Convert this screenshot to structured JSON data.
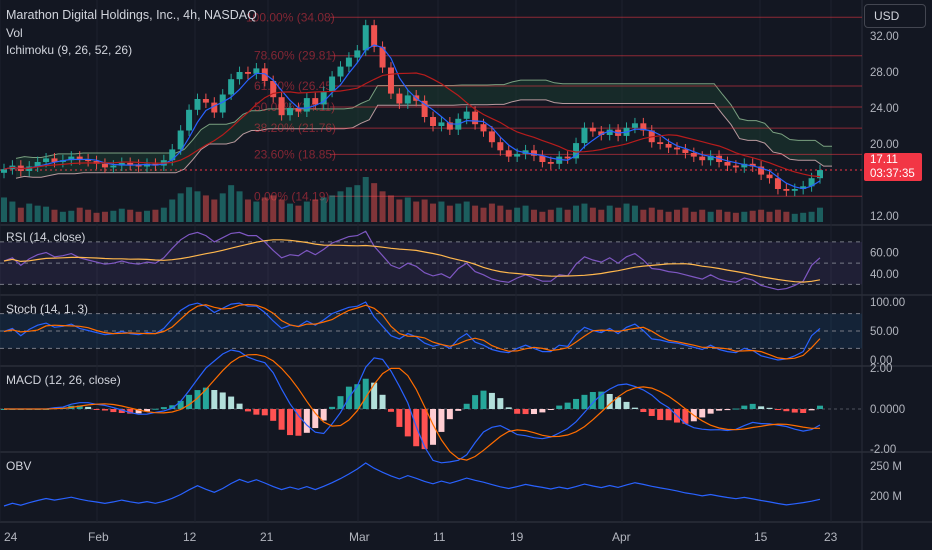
{
  "header": {
    "symbol_title": "Marathon Digital Holdings, Inc., 4h, NASDAQ",
    "vol_label": "Vol",
    "ichimoku_label": "Ichimoku (9, 26, 52, 26)",
    "currency": "USD"
  },
  "price_tag": {
    "price": "17.11",
    "countdown": "03:37:35"
  },
  "colors": {
    "background": "#131722",
    "up": "#26a69a",
    "down": "#ef5350",
    "kumo_bull": "#1b3a2f",
    "kumo_bear": "#3b1d24",
    "rsi_line": "#7e57c2",
    "macd_line": "#2962ff",
    "signal_line": "#ff6d00",
    "obv_line": "#2962ff"
  },
  "chart_data": [
    {
      "type": "candlestick",
      "pane": "price",
      "y_ticks": [
        "32.00",
        "28.00",
        "24.00",
        "20.00",
        "12.00"
      ],
      "ylim": [
        11,
        36
      ],
      "x_ticks": [
        "24",
        "Feb",
        "12",
        "21",
        "Mar",
        "11",
        "19",
        "Apr",
        "15",
        "23"
      ],
      "fib_levels": [
        {
          "label": "100.00% (34.08)",
          "value": 34.08
        },
        {
          "label": "78.60% (29.81)",
          "value": 29.81
        },
        {
          "label": "61.80% (26.45)",
          "value": 26.45
        },
        {
          "label": "50.00% (24.11)",
          "value": 24.11
        },
        {
          "label": "38.20% (21.76)",
          "value": 21.76
        },
        {
          "label": "23.60% (18.85)",
          "value": 18.85
        },
        {
          "label": "0.00% (14.19)",
          "value": 14.19
        }
      ],
      "last_price": 17.11,
      "close": [
        17.2,
        17.6,
        17.0,
        17.5,
        18.0,
        18.4,
        18.0,
        18.2,
        18.6,
        18.3,
        18.1,
        17.8,
        17.4,
        17.6,
        17.9,
        17.7,
        17.5,
        17.8,
        17.6,
        18.2,
        19.4,
        21.5,
        23.8,
        25.0,
        24.6,
        23.5,
        25.5,
        27.2,
        28.0,
        27.8,
        28.4,
        27.0,
        25.2,
        23.2,
        24.0,
        23.6,
        25.1,
        24.4,
        25.8,
        27.5,
        28.6,
        29.6,
        30.4,
        33.2,
        30.8,
        28.5,
        25.6,
        24.5,
        25.4,
        24.8,
        23.0,
        22.0,
        22.4,
        21.6,
        22.8,
        23.6,
        22.2,
        21.4,
        20.2,
        19.3,
        18.6,
        18.9,
        19.3,
        18.7,
        18.0,
        17.8,
        18.6,
        18.4,
        20.1,
        21.8,
        21.4,
        21.0,
        21.6,
        20.9,
        21.8,
        22.3,
        21.5,
        20.2,
        20.0,
        19.6,
        19.4,
        19.0,
        18.6,
        18.2,
        18.7,
        18.0,
        17.6,
        17.4,
        17.8,
        17.5,
        16.6,
        16.2,
        15.0,
        14.8,
        15.0,
        15.3,
        16.2,
        17.1
      ],
      "volume": [
        24,
        20,
        14,
        18,
        16,
        15,
        12,
        10,
        11,
        14,
        12,
        9,
        10,
        11,
        13,
        12,
        10,
        11,
        12,
        14,
        22,
        28,
        34,
        30,
        26,
        22,
        28,
        36,
        30,
        22,
        20,
        24,
        26,
        22,
        18,
        16,
        20,
        22,
        24,
        26,
        30,
        34,
        36,
        44,
        38,
        30,
        26,
        22,
        24,
        20,
        22,
        18,
        20,
        16,
        18,
        20,
        16,
        14,
        18,
        16,
        12,
        14,
        16,
        12,
        10,
        12,
        14,
        12,
        16,
        18,
        14,
        12,
        16,
        14,
        18,
        16,
        12,
        14,
        12,
        10,
        12,
        14,
        10,
        12,
        10,
        12,
        10,
        9,
        10,
        11,
        12,
        10,
        12,
        10,
        8,
        9,
        10,
        14
      ],
      "rsi": [
        52,
        55,
        48,
        54,
        58,
        60,
        56,
        57,
        59,
        55,
        53,
        51,
        49,
        50,
        52,
        50,
        49,
        51,
        50,
        55,
        64,
        72,
        77,
        79,
        76,
        70,
        74,
        78,
        79,
        76,
        76,
        70,
        62,
        55,
        58,
        57,
        62,
        58,
        63,
        69,
        72,
        75,
        76,
        80,
        66,
        57,
        48,
        45,
        50,
        47,
        41,
        38,
        40,
        36,
        45,
        50,
        42,
        39,
        35,
        33,
        32,
        36,
        39,
        36,
        33,
        33,
        39,
        38,
        49,
        56,
        53,
        51,
        55,
        50,
        56,
        59,
        53,
        45,
        44,
        42,
        41,
        39,
        37,
        35,
        39,
        35,
        33,
        32,
        36,
        34,
        29,
        27,
        25,
        26,
        29,
        33,
        48,
        55
      ],
      "rsi_ylim": [
        20,
        85
      ],
      "rsi_ticks": [
        "60.00",
        "40.00"
      ],
      "stoch_ticks": [
        "100.00",
        "50.00",
        "0.00"
      ],
      "macd_ticks": [
        "2.00",
        "0.0000",
        "-2.00"
      ],
      "obv_ticks": [
        "250 M",
        "200 M"
      ]
    }
  ]
}
